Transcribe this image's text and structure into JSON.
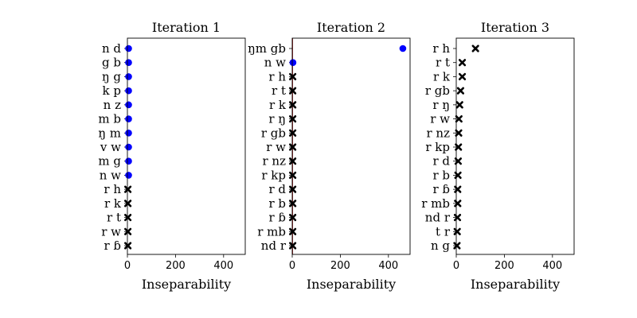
{
  "colors": {
    "accent": "#0000ff",
    "marker_cross": "#000000",
    "reference_line": "#8b0000"
  },
  "chart_data": [
    {
      "type": "scatter",
      "title": "Iteration 1",
      "xlabel": "Inseparability",
      "ylabel": "",
      "xlim": [
        0,
        490
      ],
      "xticks": [
        0,
        200,
        400
      ],
      "grid": false,
      "categories": [
        "n d",
        "g b",
        "ŋ g",
        "k p",
        "n z",
        "m b",
        "ŋ m",
        "v w",
        "m g",
        "n w",
        "r h",
        "r k",
        "r t",
        "r w",
        "r ɓ"
      ],
      "values": [
        5,
        5,
        5,
        5,
        5,
        5,
        5,
        5,
        5,
        5,
        2,
        2,
        2,
        2,
        2
      ],
      "markers": [
        "circle",
        "circle",
        "circle",
        "circle",
        "circle",
        "circle",
        "circle",
        "circle",
        "circle",
        "circle",
        "cross",
        "cross",
        "cross",
        "cross",
        "cross"
      ],
      "reference_line": null
    },
    {
      "type": "scatter",
      "title": "Iteration 2",
      "xlabel": "Inseparability",
      "ylabel": "",
      "xlim": [
        0,
        490
      ],
      "xticks": [
        0,
        200,
        400
      ],
      "grid": false,
      "categories": [
        "ŋm gb",
        "n w",
        "r h",
        "r t",
        "r k",
        "r ŋ",
        "r gb",
        "r w",
        "r nz",
        "r kp",
        "r d",
        "r b",
        "r ɓ",
        "r mb",
        "nd r"
      ],
      "values": [
        460,
        3,
        2,
        2,
        2,
        2,
        2,
        2,
        2,
        2,
        2,
        2,
        2,
        2,
        2
      ],
      "markers": [
        "circle",
        "circle",
        "cross",
        "cross",
        "cross",
        "cross",
        "cross",
        "cross",
        "cross",
        "cross",
        "cross",
        "cross",
        "cross",
        "cross",
        "cross"
      ],
      "reference_line": 1
    },
    {
      "type": "scatter",
      "title": "Iteration 3",
      "xlabel": "Inseparability",
      "ylabel": "",
      "xlim": [
        0,
        490
      ],
      "xticks": [
        0,
        200,
        400
      ],
      "grid": false,
      "categories": [
        "r h",
        "r t",
        "r k",
        "r gb",
        "r ŋ",
        "r w",
        "r nz",
        "r kp",
        "r d",
        "r b",
        "r ɓ",
        "r mb",
        "nd r",
        "t r",
        "n g"
      ],
      "values": [
        80,
        25,
        25,
        18,
        14,
        11,
        10,
        9,
        8,
        7,
        6,
        6,
        5,
        4,
        3
      ],
      "markers": [
        "cross",
        "cross",
        "cross",
        "cross",
        "cross",
        "cross",
        "cross",
        "cross",
        "cross",
        "cross",
        "cross",
        "cross",
        "cross",
        "cross",
        "cross"
      ],
      "reference_line": null
    }
  ]
}
